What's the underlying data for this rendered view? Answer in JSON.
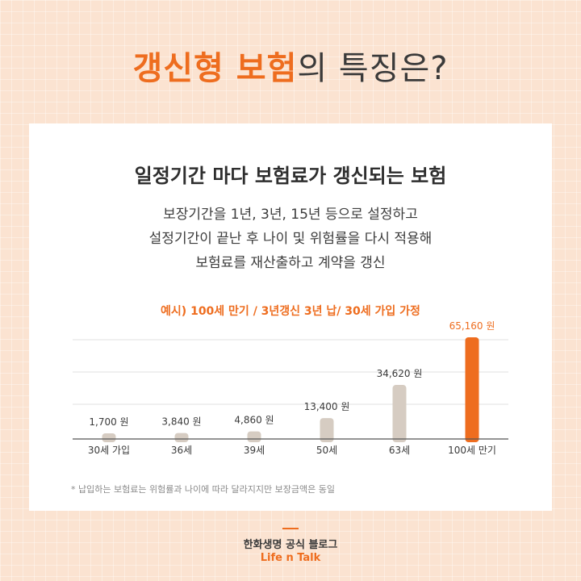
{
  "title": {
    "highlight": "갱신형 보험",
    "rest": "의 특징은?"
  },
  "card": {
    "headline": "일정기간 마다 보험료가 갱신되는 보험",
    "desc_lines": [
      "보장기간을 1년, 3년, 15년 등으로 설정하고",
      "설정기간이 끝난 후 나이 및 위험률을 다시 적용해",
      "보험료를 재산출하고 계약을 갱신"
    ],
    "example": "예시) 100세 만기 / 3년갱신 3년 납/ 30세 가입 가정",
    "footnote": "* 납입하는 보험료는 위험률과 나이에 따라 달라지지만 보장금액은 동일"
  },
  "footer": {
    "brand": "한화생명 공식 블로그",
    "blog": "Life n Talk"
  },
  "colors": {
    "accent": "#ee6d1f",
    "bar": "#d6ccc2",
    "text": "#3a3a3a"
  },
  "chart_data": {
    "type": "bar",
    "categories": [
      "30세 가입",
      "36세",
      "39세",
      "50세",
      "63세",
      "100세 만기"
    ],
    "values": [
      1700,
      3840,
      4860,
      13400,
      34620,
      65160
    ],
    "value_labels": [
      "1,700 원",
      "3,840 원",
      "4,860 원",
      "13,400 원",
      "34,620 원",
      "65,160 원"
    ],
    "highlight_index": 5,
    "ylim": [
      0,
      65160
    ],
    "grid": true
  }
}
